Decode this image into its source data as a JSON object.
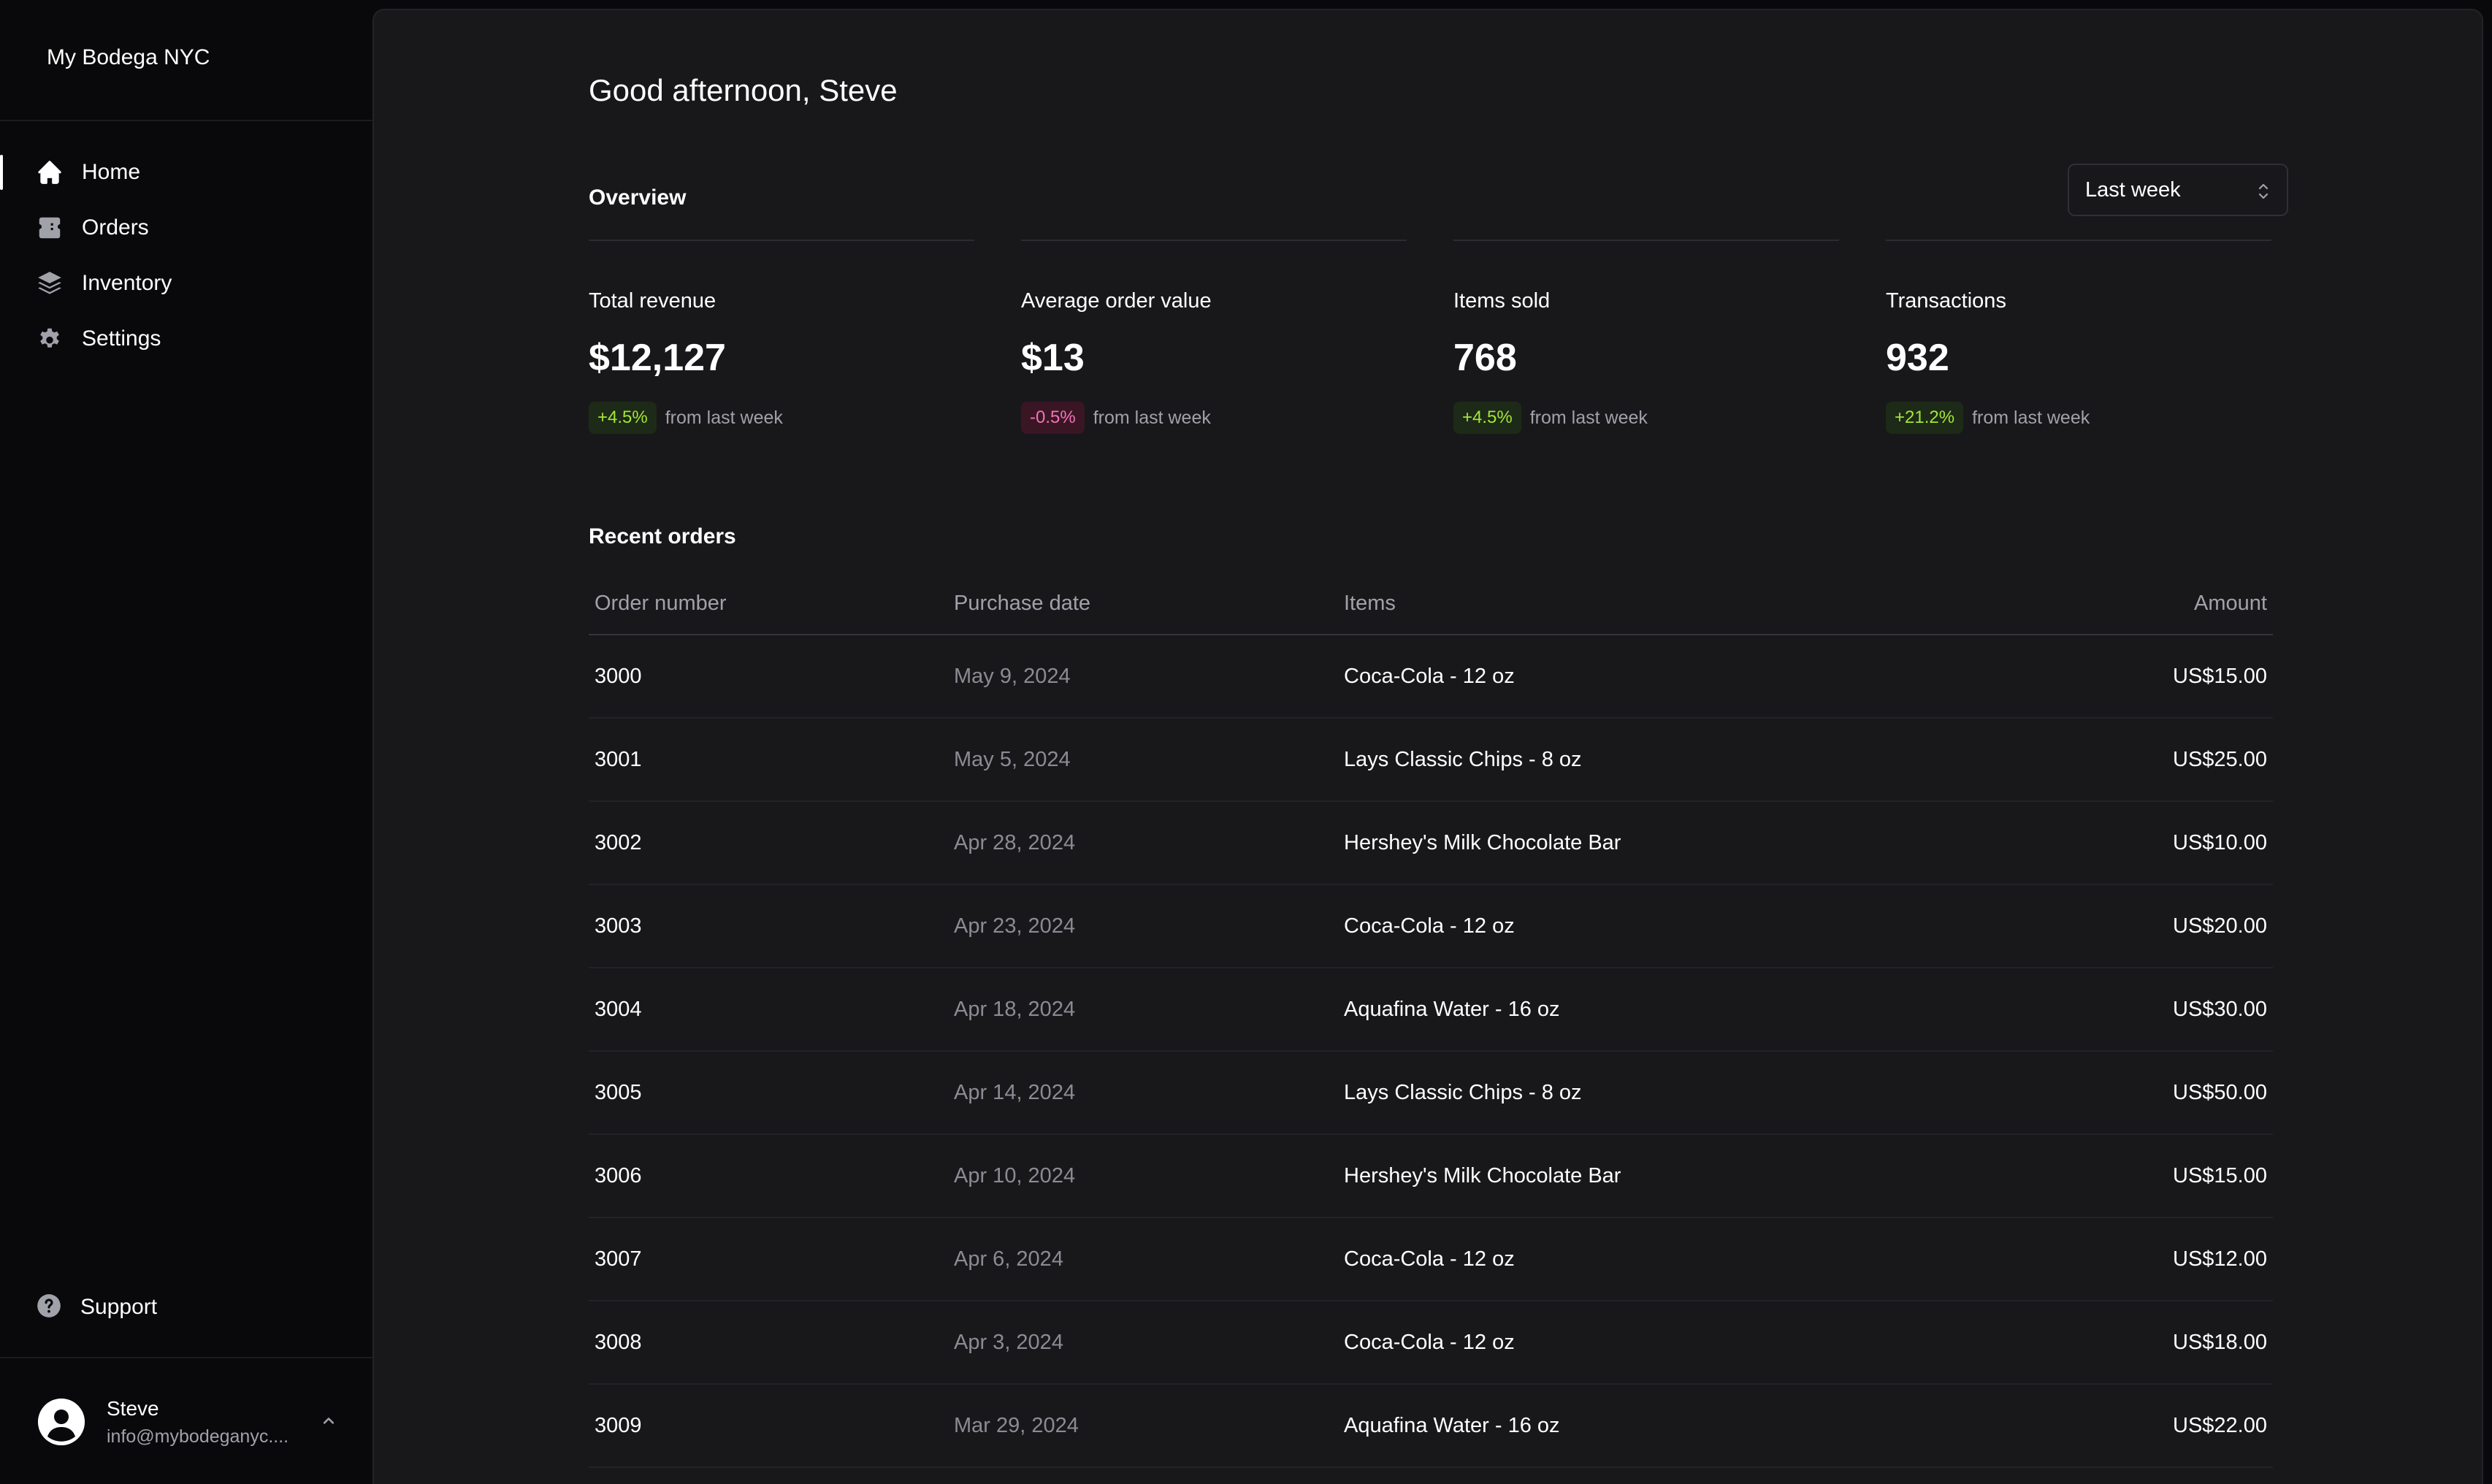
{
  "sidebar": {
    "brand": "My Bodega NYC",
    "nav": [
      {
        "label": "Home",
        "icon": "home-icon",
        "active": true
      },
      {
        "label": "Orders",
        "icon": "ticket-icon"
      },
      {
        "label": "Inventory",
        "icon": "layers-icon"
      },
      {
        "label": "Settings",
        "icon": "gear-icon"
      }
    ],
    "support": {
      "label": "Support",
      "icon": "question-circle-icon"
    },
    "user": {
      "name": "Steve",
      "email": "info@mybodeganyc...."
    }
  },
  "main": {
    "greeting": "Good afternoon, Steve",
    "overview": {
      "title": "Overview",
      "period": "Last week",
      "stats": [
        {
          "label": "Total revenue",
          "value": "$12,127",
          "change": "+4.5%",
          "trend": "up",
          "note": "from last week"
        },
        {
          "label": "Average order value",
          "value": "$13",
          "change": "-0.5%",
          "trend": "down",
          "note": "from last week"
        },
        {
          "label": "Items sold",
          "value": "768",
          "change": "+4.5%",
          "trend": "up",
          "note": "from last week"
        },
        {
          "label": "Transactions",
          "value": "932",
          "change": "+21.2%",
          "trend": "up",
          "note": "from last week"
        }
      ]
    },
    "recent_orders": {
      "title": "Recent orders",
      "columns": [
        "Order number",
        "Purchase date",
        "Items",
        "Amount"
      ],
      "rows": [
        {
          "number": "3000",
          "date": "May 9, 2024",
          "items": "Coca-Cola - 12 oz",
          "amount": "US$15.00"
        },
        {
          "number": "3001",
          "date": "May 5, 2024",
          "items": "Lays Classic Chips - 8 oz",
          "amount": "US$25.00"
        },
        {
          "number": "3002",
          "date": "Apr 28, 2024",
          "items": "Hershey's Milk Chocolate Bar",
          "amount": "US$10.00"
        },
        {
          "number": "3003",
          "date": "Apr 23, 2024",
          "items": "Coca-Cola - 12 oz",
          "amount": "US$20.00"
        },
        {
          "number": "3004",
          "date": "Apr 18, 2024",
          "items": "Aquafina Water - 16 oz",
          "amount": "US$30.00"
        },
        {
          "number": "3005",
          "date": "Apr 14, 2024",
          "items": "Lays Classic Chips - 8 oz",
          "amount": "US$50.00"
        },
        {
          "number": "3006",
          "date": "Apr 10, 2024",
          "items": "Hershey's Milk Chocolate Bar",
          "amount": "US$15.00"
        },
        {
          "number": "3007",
          "date": "Apr 6, 2024",
          "items": "Coca-Cola - 12 oz",
          "amount": "US$12.00"
        },
        {
          "number": "3008",
          "date": "Apr 3, 2024",
          "items": "Coca-Cola - 12 oz",
          "amount": "US$18.00"
        },
        {
          "number": "3009",
          "date": "Mar 29, 2024",
          "items": "Aquafina Water - 16 oz",
          "amount": "US$22.00"
        }
      ]
    }
  },
  "colors": {
    "background": "#09090b",
    "panel": "#18181b",
    "positive": "#a3e635",
    "negative": "#f472b6",
    "muted_text": "#a1a1aa"
  }
}
